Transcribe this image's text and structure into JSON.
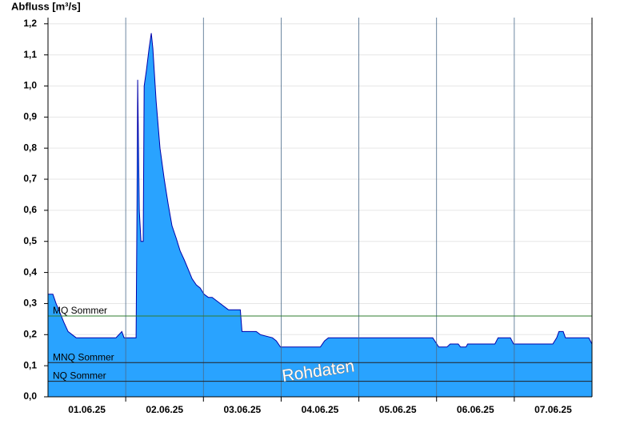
{
  "chart_data": {
    "type": "area",
    "y_label": "Abfluss [m³/s]",
    "annotation": "Rohdaten",
    "xlim": [
      0,
      168
    ],
    "ylim": [
      0,
      1.22
    ],
    "xticks": [
      {
        "value": 12,
        "label": "01.06.25"
      },
      {
        "value": 36,
        "label": "02.06.25"
      },
      {
        "value": 60,
        "label": "03.06.25"
      },
      {
        "value": 84,
        "label": "04.06.25"
      },
      {
        "value": 108,
        "label": "05.06.25"
      },
      {
        "value": 132,
        "label": "06.06.25"
      },
      {
        "value": 156,
        "label": "07.06.25"
      }
    ],
    "xgrid": [
      24,
      48,
      72,
      96,
      120,
      144
    ],
    "yticks": [
      {
        "value": 0,
        "label": "0,0"
      },
      {
        "value": 0.1,
        "label": "0,1"
      },
      {
        "value": 0.2,
        "label": "0,2"
      },
      {
        "value": 0.3,
        "label": "0,3"
      },
      {
        "value": 0.4,
        "label": "0,4"
      },
      {
        "value": 0.5,
        "label": "0,5"
      },
      {
        "value": 0.6,
        "label": "0,6"
      },
      {
        "value": 0.7,
        "label": "0,7"
      },
      {
        "value": 0.8,
        "label": "0,8"
      },
      {
        "value": 0.9,
        "label": "0,9"
      },
      {
        "value": 1.0,
        "label": "1,0"
      },
      {
        "value": 1.1,
        "label": "1,1"
      },
      {
        "value": 1.2,
        "label": "1,2"
      }
    ],
    "grid": true,
    "color": "#29a3ff",
    "line_color": "#0000aa",
    "x": [
      0,
      1.5,
      2.5,
      3.7,
      4.9,
      6.2,
      8.7,
      21,
      22.8,
      23.5,
      27.2,
      27.5,
      27.7,
      28.2,
      28.7,
      29.4,
      29.7,
      30.4,
      31.2,
      31.9,
      32.4,
      33.4,
      34.6,
      35.9,
      37.1,
      38.3,
      39.6,
      40.8,
      42.1,
      43.3,
      44.5,
      45.8,
      47,
      48.2,
      49.5,
      50.7,
      55.7,
      59.4,
      59.9,
      64.3,
      65.6,
      69.3,
      70.5,
      71.8,
      84.1,
      85.4,
      86.6,
      118.8,
      120.7,
      123.2,
      124.2,
      126.7,
      127.4,
      129.1,
      129.6,
      138,
      139,
      142.8,
      143.8,
      155.9,
      157.1,
      157.8,
      159.1,
      159.8,
      167,
      168
    ],
    "values": [
      0.33,
      0.33,
      0.3,
      0.27,
      0.24,
      0.21,
      0.19,
      0.19,
      0.21,
      0.19,
      0.19,
      0.62,
      1.02,
      0.6,
      0.5,
      0.5,
      1.0,
      1.05,
      1.12,
      1.17,
      1.12,
      0.95,
      0.8,
      0.7,
      0.62,
      0.55,
      0.51,
      0.47,
      0.44,
      0.41,
      0.38,
      0.36,
      0.35,
      0.33,
      0.32,
      0.32,
      0.28,
      0.28,
      0.21,
      0.21,
      0.2,
      0.19,
      0.18,
      0.16,
      0.16,
      0.18,
      0.19,
      0.19,
      0.16,
      0.16,
      0.17,
      0.17,
      0.16,
      0.16,
      0.17,
      0.17,
      0.19,
      0.19,
      0.17,
      0.17,
      0.19,
      0.21,
      0.21,
      0.19,
      0.19,
      0.17
    ],
    "reference_lines": [
      {
        "label": "MQ Sommer",
        "value": 0.26,
        "color": "#2e7d2e"
      },
      {
        "label": "MNQ Sommer",
        "value": 0.11,
        "color": "#222222"
      },
      {
        "label": "NQ Sommer",
        "value": 0.05,
        "color": "#222222"
      }
    ]
  }
}
